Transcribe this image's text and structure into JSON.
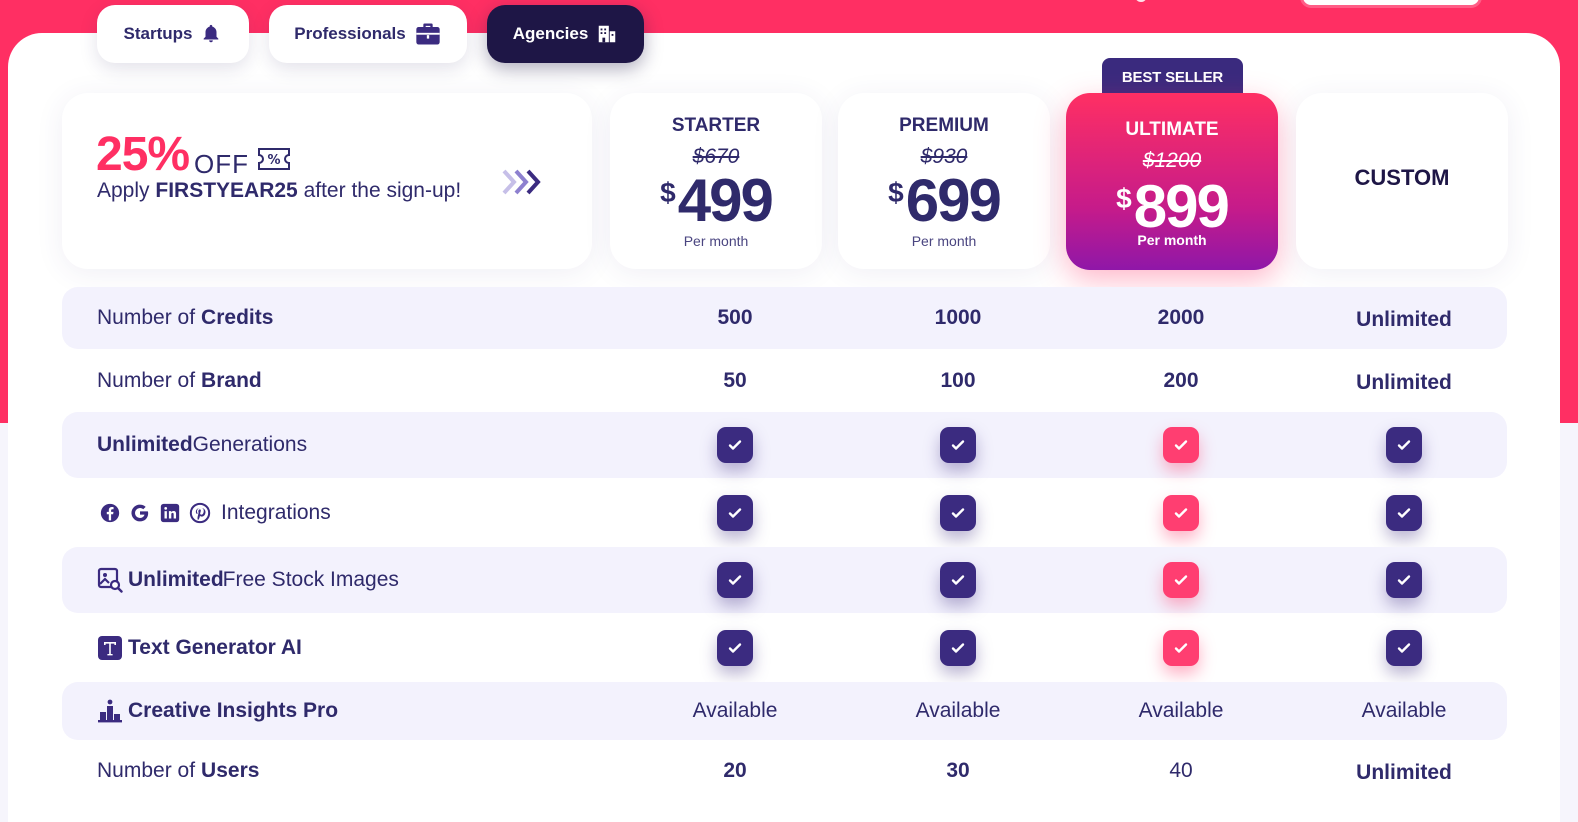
{
  "colors": {
    "accent": "#ff2f63",
    "brand_dark": "#1e1646",
    "brand": "#3b2b80",
    "pink_check": "#ff3e71"
  },
  "segments": [
    {
      "label": "Startups",
      "icon": "bell-icon",
      "active": false
    },
    {
      "label": "Professionals",
      "icon": "briefcase-icon",
      "active": false
    },
    {
      "label": "Agencies",
      "icon": "building-icon",
      "active": true
    }
  ],
  "promo": {
    "percent": "25%",
    "off": "OFF",
    "apply_prefix": "Apply ",
    "code": "FIRSTYEAR25",
    "apply_suffix": " after the sign-up!"
  },
  "plans": [
    {
      "name": "STARTER",
      "old_price": "$670",
      "currency": "$",
      "price": "499",
      "period": "Per month"
    },
    {
      "name": "PREMIUM",
      "old_price": "$930",
      "currency": "$",
      "price": "699",
      "period": "Per month"
    },
    {
      "name": "ULTIMATE",
      "old_price": "$1200",
      "currency": "$",
      "price": "899",
      "period": "Per month",
      "ribbon": "BEST SELLER"
    },
    {
      "name": "CUSTOM"
    }
  ],
  "rows": {
    "credits": {
      "prefix": "Number of ",
      "bold": "Credits",
      "values": [
        "500",
        "1000",
        "2000",
        "Unlimited"
      ]
    },
    "brand": {
      "prefix": "Number of ",
      "bold": "Brand",
      "values": [
        "50",
        "100",
        "200",
        "Unlimited"
      ]
    },
    "generations": {
      "bold": "Unlimited",
      "suffix": " Generations"
    },
    "integrations": {
      "label": "Integrations",
      "icons": [
        "facebook-icon",
        "google-icon",
        "linkedin-icon",
        "pinterest-icon"
      ]
    },
    "stock": {
      "bold": "Unlimited",
      "suffix": " Free Stock Images",
      "icon": "image-search-icon"
    },
    "textai": {
      "bold": "Text Generator AI",
      "icon": "text-t-icon"
    },
    "insights": {
      "bold": "Creative Insights Pro",
      "icon": "podium-icon",
      "values": [
        "Available",
        "Available",
        "Available",
        "Available"
      ]
    },
    "users": {
      "prefix": "Number of ",
      "bold": "Users",
      "values": [
        "20",
        "30",
        "40",
        "Unlimited"
      ]
    }
  }
}
